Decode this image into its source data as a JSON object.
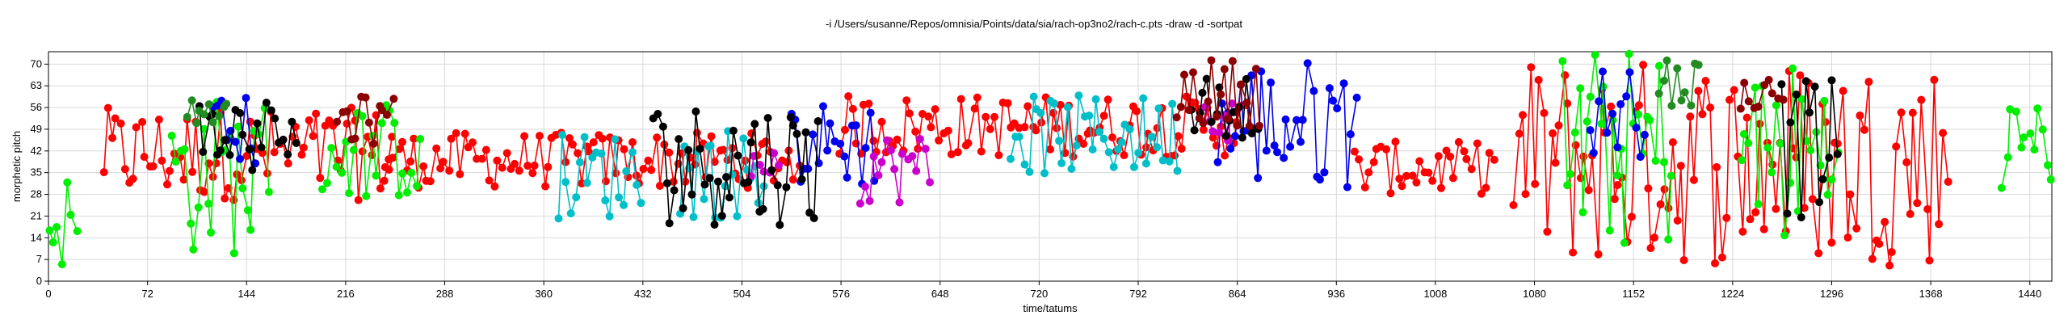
{
  "chart_data": {
    "type": "scatter",
    "title": "-i /Users/susanne/Repos/omnisia/Points/data/sia/rach-op3no2/rach-c.pts -draw -d -sortpat",
    "xlabel": "time/tatums",
    "ylabel": "morphetic pitch",
    "xlim": [
      0,
      1456
    ],
    "ylim": [
      0,
      74
    ],
    "xticks": [
      0,
      72,
      144,
      216,
      288,
      360,
      432,
      504,
      576,
      648,
      720,
      792,
      864,
      936,
      1008,
      1080,
      1152,
      1224,
      1296,
      1368,
      1440
    ],
    "yticks": [
      0,
      7,
      14,
      21,
      28,
      35,
      42,
      49,
      56,
      63,
      70
    ],
    "grid": true,
    "legend": "none",
    "series": [
      {
        "color": "#ff0000",
        "segments": [
          [
            40,
            250,
            26,
            56
          ],
          [
            245,
            545,
            30,
            48
          ],
          [
            575,
            870,
            40,
            60
          ],
          [
            950,
            1050,
            28,
            45
          ],
          [
            1065,
            1380,
            5,
            72
          ]
        ]
      },
      {
        "color": "#00ee00",
        "segments": [
          [
            0,
            20,
            4,
            35
          ],
          [
            90,
            160,
            8,
            60
          ],
          [
            200,
            270,
            26,
            58
          ],
          [
            1100,
            1180,
            10,
            75
          ],
          [
            1230,
            1300,
            10,
            72
          ],
          [
            1420,
            1456,
            30,
            60
          ]
        ]
      },
      {
        "color": "#0000ee",
        "segments": [
          [
            120,
            150,
            36,
            60
          ],
          [
            540,
            600,
            30,
            58
          ],
          [
            850,
            950,
            30,
            72
          ],
          [
            1120,
            1160,
            40,
            70
          ]
        ]
      },
      {
        "color": "#00bfc8",
        "segments": [
          [
            370,
            430,
            20,
            48
          ],
          [
            460,
            520,
            20,
            50
          ],
          [
            700,
            820,
            34,
            60
          ]
        ]
      },
      {
        "color": "#cc00cc",
        "segments": [
          [
            510,
            530,
            33,
            45
          ],
          [
            590,
            640,
            25,
            48
          ],
          [
            840,
            860,
            45,
            60
          ]
        ]
      },
      {
        "color": "#000000",
        "segments": [
          [
            110,
            180,
            34,
            60
          ],
          [
            440,
            560,
            18,
            58
          ],
          [
            830,
            880,
            46,
            68
          ],
          [
            1260,
            1300,
            20,
            65
          ]
        ]
      },
      {
        "color": "#8b0000",
        "segments": [
          [
            210,
            250,
            44,
            60
          ],
          [
            820,
            880,
            50,
            72
          ],
          [
            1230,
            1260,
            50,
            66
          ]
        ]
      },
      {
        "color": "#228b22",
        "segments": [
          [
            100,
            130,
            50,
            60
          ],
          [
            1170,
            1200,
            56,
            72
          ]
        ]
      }
    ]
  }
}
